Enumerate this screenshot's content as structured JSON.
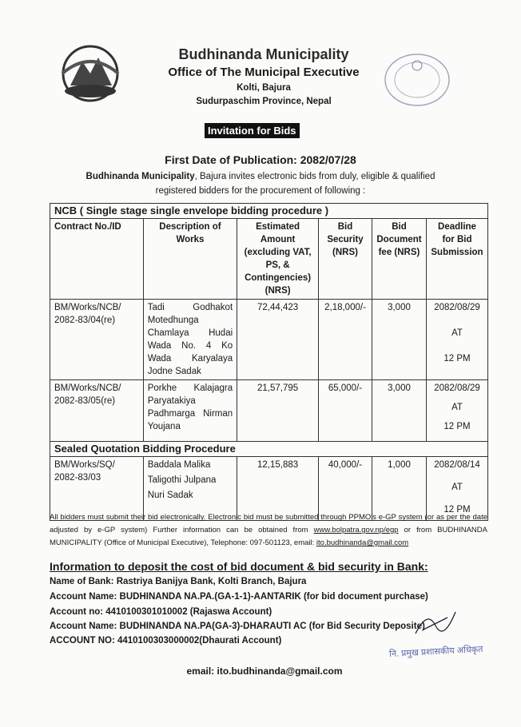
{
  "header": {
    "org": "Budhinanda Municipality",
    "office": "Office of The Municipal Executive",
    "address1": "Kolti, Bajura",
    "address2": "Sudurpaschim Province, Nepal",
    "notice_title": "Invitation for Bids"
  },
  "publication": {
    "first_date": "First Date of Publication: 2082/07/28",
    "intro_bold": "Budhinanda Municipality",
    "intro_rest": ", Bajura invites electronic bids from duly, eligible & qualified",
    "intro_line2": "registered bidders for the procurement of following :"
  },
  "table": {
    "section1": "NCB  (  Single stage single envelope bidding procedure )",
    "headers": [
      "Contract No./ID",
      "Description of Works",
      "Estimated Amount (excluding VAT, PS, & Contingencies) (NRS)",
      "Bid Security (NRS)",
      "Bid Document fee (NRS)",
      "Deadline for Bid Submission"
    ],
    "rows": [
      {
        "id": "BM/Works/NCB/ 2082-83/04(re)",
        "desc": "Tadi Godhakot Motedhunga Chamlaya Hudai Wada No. 4 Ko Wada Karyalaya Jodne Sadak",
        "amount": "72,44,423",
        "security": "2,18,000/-",
        "fee": "3,000",
        "date": "2082/08/29",
        "at": "AT",
        "time": "12 PM"
      },
      {
        "id": "BM/Works/NCB/ 2082-83/05(re)",
        "desc": "Porkhe Kalajagra Paryatakiya Padhmarga Nirman Youjana",
        "amount": "21,57,795",
        "security": "65,000/-",
        "fee": "3,000",
        "date": "2082/08/29",
        "at": "AT",
        "time": "12 PM"
      }
    ],
    "section2": "Sealed Quotation Bidding Procedure",
    "rows2": [
      {
        "id": "BM/Works/SQ/ 2082-83/03",
        "desc1": "Baddala Malika",
        "desc2": "Taligothi Julpana",
        "desc3": "Nuri Sadak",
        "amount": "12,15,883",
        "security": "40,000/-",
        "fee": "1,000",
        "date": "2082/08/14",
        "at": "AT",
        "time": "12 PM"
      }
    ]
  },
  "note": {
    "text1": "All bidders must submit their bid electronically. Electronic bid must be submitted through PPMO's e-GP system (or as per the date  adjusted by e-GP system) Further information can be obtained from ",
    "link": "www.bolpatra.gov.np/egp",
    "text2": " or from BUDHINANDA MUNICIPALITY (Office of Municipal Executive), Telephone: 097-501123, email: ",
    "email": "ito.budhinanda@gmail.com"
  },
  "bank": {
    "title": "Information to deposit the cost of bid document & bid security in Bank:",
    "lines": [
      "Name of Bank: Rastriya Banijya Bank, Kolti Branch, Bajura",
      "Account Name: BUDHINANDA NA.PA.(GA-1-1)-AANTARIK (for bid document purchase)",
      "Account no: 4410100301010002 (Rajaswa Account)",
      "Account Name: BUDHINANDA NA.PA(GA-3)-DHARAUTI AC (for Bid Security Deposite)",
      "ACCOUNT NO: 4410100303000002(Dhaurati Account)"
    ]
  },
  "signature": {
    "stamp_text": "नि. प्रमुख प्रशासकीय अधिकृत"
  },
  "footer": {
    "email": "email: ito.budhinanda@gmail.com"
  }
}
